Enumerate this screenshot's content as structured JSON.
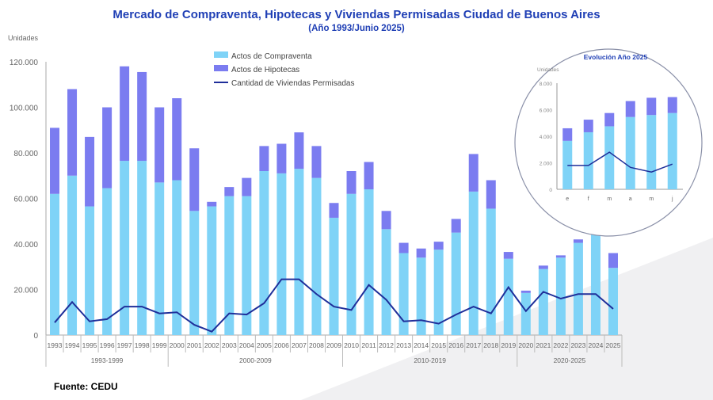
{
  "title": "Mercado de Compraventa, Hipotecas y Viviendas Permisadas Ciudad de Buenos Aires",
  "subtitle": "(Año 1993/Junio 2025)",
  "source": "Fuente: CEDU",
  "colors": {
    "compraventa": "#7fd3f7",
    "hipotecas": "#7b7cf0",
    "permisadas": "#1f2f9a",
    "title": "#1f3fb5"
  },
  "chart_data": [
    {
      "type": "bar",
      "stacked": true,
      "ylabel": "Unidades",
      "ylim": [
        0,
        120000
      ],
      "yticks": [
        "0",
        "20.000",
        "40.000",
        "60.000",
        "80.000",
        "100.000",
        "120.000"
      ],
      "legend_position": "top-center",
      "categories": [
        "1993",
        "1994",
        "1995",
        "1996",
        "1997",
        "1998",
        "1999",
        "2000",
        "2001",
        "2002",
        "2003",
        "2004",
        "2005",
        "2006",
        "2007",
        "2008",
        "2009",
        "2010",
        "2011",
        "2012",
        "2013",
        "2014",
        "2015",
        "2016",
        "2017",
        "2018",
        "2019",
        "2020",
        "2021",
        "2022",
        "2023",
        "2024",
        "2025"
      ],
      "groups": [
        {
          "label": "1993-1999",
          "count": 7
        },
        {
          "label": "2000-2009",
          "count": 10
        },
        {
          "label": "2010-2019",
          "count": 10
        },
        {
          "label": "2020-2025",
          "count": 6
        }
      ],
      "series": [
        {
          "name": "Actos de Compraventa",
          "type": "bar",
          "values": [
            62000,
            70000,
            56500,
            64500,
            76500,
            76500,
            67000,
            68000,
            54500,
            56500,
            61000,
            61000,
            72000,
            71000,
            73000,
            69000,
            51500,
            62000,
            64000,
            46500,
            36000,
            34000,
            37500,
            45000,
            63000,
            55500,
            33500,
            18500,
            29000,
            34000,
            40500,
            55000,
            29500
          ]
        },
        {
          "name": "Actos de Hipotecas",
          "type": "bar",
          "values": [
            29000,
            38000,
            30500,
            35500,
            41500,
            39000,
            33000,
            36000,
            27500,
            2000,
            4000,
            8000,
            11000,
            13000,
            16000,
            14000,
            6500,
            10000,
            12000,
            8000,
            4500,
            4000,
            3500,
            6000,
            16500,
            12500,
            3000,
            1000,
            1500,
            1000,
            1500,
            4500,
            6500
          ]
        },
        {
          "name": "Cantidad de Viviendas Permisadas",
          "type": "line",
          "values": [
            5500,
            14500,
            6000,
            7000,
            12500,
            12500,
            9500,
            10000,
            4500,
            1500,
            9500,
            9000,
            14000,
            24500,
            24500,
            18000,
            12500,
            11000,
            22000,
            15500,
            6000,
            6500,
            5000,
            9000,
            12500,
            9500,
            21000,
            10500,
            19000,
            16000,
            18000,
            18000,
            11500
          ]
        }
      ]
    },
    {
      "type": "bar",
      "stacked": true,
      "title": "Evolución Año 2025",
      "ylabel": "Unidades",
      "ylim": [
        0,
        8000
      ],
      "yticks": [
        "0",
        "2.000",
        "4.000",
        "6.000",
        "8.000"
      ],
      "categories": [
        "e",
        "f",
        "m",
        "a",
        "m",
        "j"
      ],
      "series": [
        {
          "name": "Actos de Compraventa",
          "type": "bar",
          "values": [
            3650,
            4300,
            4750,
            5450,
            5600,
            5750
          ]
        },
        {
          "name": "Actos de Hipotecas",
          "type": "bar",
          "values": [
            950,
            950,
            1000,
            1200,
            1300,
            1200
          ]
        },
        {
          "name": "Cantidad de Viviendas Permisadas",
          "type": "line",
          "values": [
            1800,
            1800,
            2800,
            1650,
            1300,
            1900
          ]
        }
      ]
    }
  ]
}
